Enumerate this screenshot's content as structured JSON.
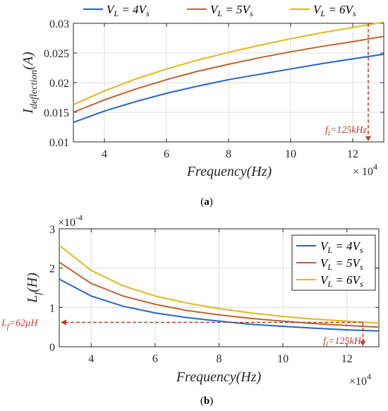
{
  "chart_data": [
    {
      "type": "line",
      "caption": "(a)",
      "ylabel": "I",
      "ylabel_sub": "deflection",
      "ylabel_suffix": "(A)",
      "xlabel": "Frequency(Hz)",
      "x_multiplier": "× 10",
      "x_multiplier_exp": "4",
      "xlim": [
        3,
        13
      ],
      "ylim": [
        0.01,
        0.03
      ],
      "xticks": [
        4,
        6,
        8,
        10,
        12
      ],
      "yticks": [
        0.01,
        0.015,
        0.02,
        0.025,
        0.03
      ],
      "ytick_labels": [
        "0.01",
        "0.015",
        "0.02",
        "0.025",
        "0.03"
      ],
      "grid": true,
      "legend_position": "top-outside",
      "x": [
        3,
        4,
        5,
        6,
        7,
        8,
        9,
        10,
        11,
        12,
        13
      ],
      "series": [
        {
          "name": "V_L = 4V_s",
          "name_main": "V",
          "name_sub": "L",
          "name_mid": " = 4V",
          "name_sub2": "s",
          "color": "#2166c4",
          "values": [
            0.0133,
            0.0152,
            0.0168,
            0.0182,
            0.0194,
            0.0205,
            0.0214,
            0.0223,
            0.0232,
            0.024,
            0.0248
          ]
        },
        {
          "name": "V_L = 5V_s",
          "name_main": "V",
          "name_sub": "L",
          "name_mid": " = 5V",
          "name_sub2": "s",
          "color": "#c0632a",
          "values": [
            0.015,
            0.0171,
            0.0189,
            0.0205,
            0.0219,
            0.0231,
            0.0242,
            0.0252,
            0.0261,
            0.0269,
            0.0278
          ]
        },
        {
          "name": "V_L = 6V_s",
          "name_main": "V",
          "name_sub": "L",
          "name_mid": " = 6V",
          "name_sub2": "s",
          "color": "#e3b71a",
          "values": [
            0.0163,
            0.0186,
            0.0206,
            0.0223,
            0.0238,
            0.0251,
            0.0263,
            0.0274,
            0.0284,
            0.0293,
            0.0302
          ]
        }
      ],
      "annotation": {
        "label": "f",
        "label_sub": "l",
        "label_value": "=125kHz",
        "x": 12.5,
        "y_top": 0.03,
        "y_bottom": 0.01,
        "color": "#c0392b"
      }
    },
    {
      "type": "line",
      "caption": "(b)",
      "ylabel": "L",
      "ylabel_sub": "f",
      "ylabel_suffix": "(H)",
      "y_multiplier": "×10",
      "y_multiplier_exp": "-4",
      "xlabel": "Frequency(Hz)",
      "x_multiplier": "×10",
      "x_multiplier_exp": "4",
      "xlim": [
        3,
        13
      ],
      "ylim": [
        0,
        3
      ],
      "xticks": [
        4,
        6,
        8,
        10,
        12
      ],
      "yticks": [
        0,
        1,
        2,
        3
      ],
      "ytick_labels": [
        "0",
        "1",
        "2",
        "3"
      ],
      "grid": true,
      "legend_position": "top-right",
      "x": [
        3,
        4,
        5,
        6,
        7,
        8,
        9,
        10,
        11,
        12,
        13
      ],
      "series": [
        {
          "name": "V_L = 4V_s",
          "name_main": "V",
          "name_sub": "L",
          "name_mid": " = 4V",
          "name_sub2": "s",
          "color": "#2166c4",
          "values": [
            1.72,
            1.29,
            1.03,
            0.86,
            0.74,
            0.65,
            0.57,
            0.52,
            0.47,
            0.43,
            0.4
          ]
        },
        {
          "name": "V_L = 5V_s",
          "name_main": "V",
          "name_sub": "L",
          "name_mid": " = 5V",
          "name_sub2": "s",
          "color": "#c0632a",
          "values": [
            2.15,
            1.61,
            1.29,
            1.08,
            0.92,
            0.81,
            0.72,
            0.65,
            0.59,
            0.54,
            0.5
          ]
        },
        {
          "name": "V_L = 6V_s",
          "name_main": "V",
          "name_sub": "L",
          "name_mid": " = 6V",
          "name_sub2": "s",
          "color": "#e3b71a",
          "values": [
            2.58,
            1.94,
            1.55,
            1.29,
            1.11,
            0.97,
            0.86,
            0.77,
            0.7,
            0.65,
            0.6
          ]
        }
      ],
      "annotation": {
        "label": "f",
        "label_sub": "l",
        "label_value": "=125kHz",
        "x": 12.5,
        "y_top": 0.62,
        "y_bottom": 0,
        "color": "#c0392b",
        "hlabel": "L",
        "hlabel_sub": "f",
        "hlabel_value": "=62μH",
        "y": 0.62
      }
    }
  ]
}
